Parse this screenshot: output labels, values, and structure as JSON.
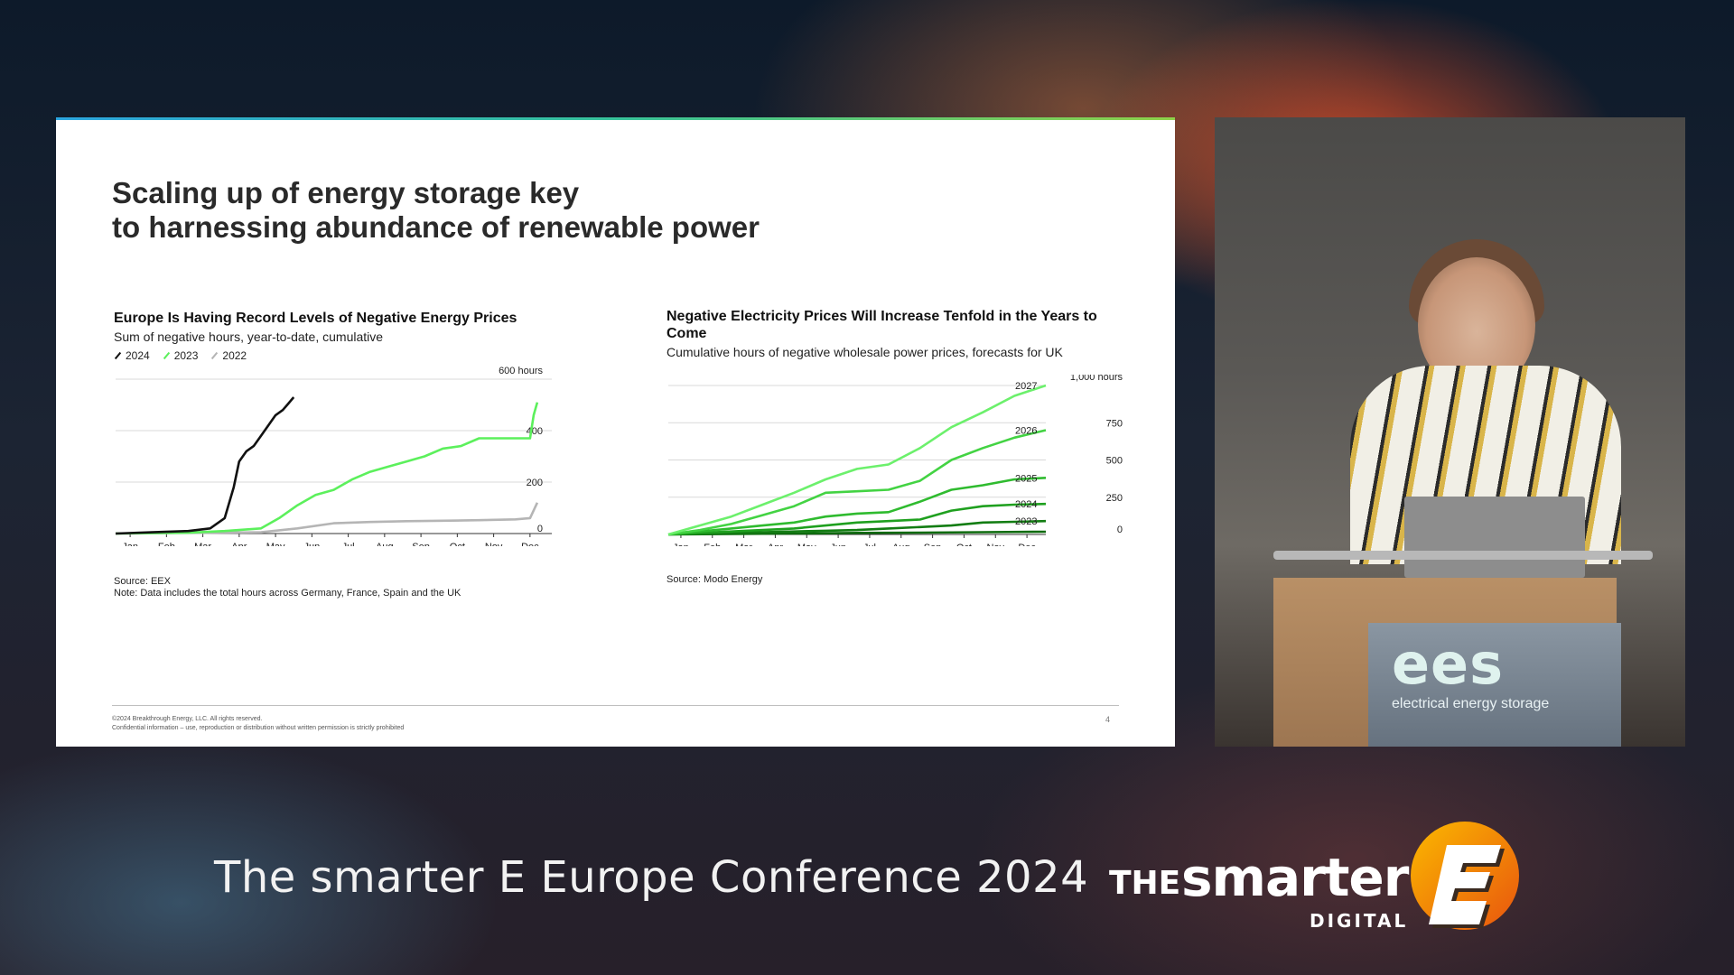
{
  "slide": {
    "title_line1": "Scaling up of energy storage key",
    "title_line2": "to harnessing abundance of renewable power",
    "footer_copyright": "©2024 Breakthrough Energy, LLC. All rights reserved.",
    "footer_confidential": "Confidential information – use, reproduction or distribution without written permission is strictly prohibited",
    "page_number": "4"
  },
  "chart_data": [
    {
      "type": "line",
      "title": "Europe Is Having Record Levels of Negative Energy Prices",
      "subtitle": "Sum of negative hours, year-to-date, cumulative",
      "unit_label": "600 hours",
      "categories": [
        "Jan",
        "Feb",
        "Mar",
        "Apr",
        "May",
        "Jun",
        "Jul",
        "Aug",
        "Sep",
        "Oct",
        "Nov",
        "Dec"
      ],
      "y_ticks": [
        0,
        200,
        400
      ],
      "ylim": [
        0,
        600
      ],
      "grid": true,
      "legend_position": "top-left",
      "series": [
        {
          "name": "2024",
          "color": "#111111",
          "x": [
            0,
            1,
            2,
            2.6,
            3.0,
            3.25,
            3.4,
            3.6,
            3.8,
            4.0,
            4.2,
            4.4,
            4.6,
            4.75,
            4.9
          ],
          "values": [
            0,
            5,
            10,
            20,
            60,
            180,
            280,
            320,
            340,
            380,
            420,
            460,
            480,
            505,
            530
          ]
        },
        {
          "name": "2023",
          "color": "#5cf05c",
          "x": [
            0,
            2,
            3,
            4,
            4.5,
            5,
            5.5,
            6,
            6.5,
            7,
            7.5,
            8,
            8.5,
            9,
            9.5,
            10,
            10.5,
            11,
            11.4,
            11.5,
            11.6
          ],
          "values": [
            0,
            3,
            10,
            20,
            60,
            110,
            150,
            170,
            210,
            240,
            260,
            280,
            300,
            330,
            340,
            370,
            370,
            370,
            370,
            460,
            510
          ]
        },
        {
          "name": "2022",
          "color": "#b5b5b5",
          "x": [
            0,
            4,
            5,
            6,
            7,
            8,
            9,
            10,
            11,
            11.4,
            11.6
          ],
          "values": [
            0,
            5,
            20,
            40,
            45,
            48,
            50,
            52,
            55,
            60,
            120
          ]
        }
      ],
      "source": "Source: EEX",
      "note": "Note: Data includes the total hours across Germany, France, Spain and the UK"
    },
    {
      "type": "line",
      "title": "Negative Electricity Prices Will Increase Tenfold in the Years to Come",
      "subtitle": "Cumulative hours of negative wholesale power prices, forecasts for UK",
      "unit_label": "1,000 hours",
      "categories": [
        "Jan",
        "Feb",
        "Mar",
        "Apr",
        "May",
        "Jun",
        "Jul",
        "Aug",
        "Sep",
        "Oct",
        "Nov",
        "Dec"
      ],
      "y_ticks": [
        0,
        250,
        500,
        750
      ],
      "ylim": [
        0,
        1000
      ],
      "grid": true,
      "series": [
        {
          "name": "2027",
          "color": "#6cf06c",
          "x": [
            0,
            1,
            2,
            3,
            4,
            5,
            6,
            7,
            8,
            9,
            10,
            11,
            12
          ],
          "values": [
            0,
            60,
            120,
            200,
            280,
            370,
            440,
            470,
            580,
            720,
            820,
            930,
            1000
          ]
        },
        {
          "name": "2026",
          "color": "#43d343",
          "x": [
            0,
            1,
            2,
            3,
            4,
            5,
            6,
            7,
            8,
            9,
            10,
            11,
            12
          ],
          "values": [
            0,
            30,
            70,
            130,
            190,
            280,
            290,
            300,
            360,
            500,
            580,
            650,
            700
          ]
        },
        {
          "name": "2025",
          "color": "#2fbb2f",
          "x": [
            0,
            1,
            2,
            3,
            4,
            5,
            6,
            7,
            8,
            9,
            10,
            11,
            12
          ],
          "values": [
            0,
            20,
            40,
            60,
            80,
            120,
            140,
            150,
            220,
            300,
            330,
            370,
            380
          ]
        },
        {
          "name": "2024",
          "color": "#1fa01f",
          "x": [
            0,
            1,
            2,
            3,
            4,
            5,
            6,
            7,
            8,
            9,
            10,
            11,
            12
          ],
          "values": [
            0,
            10,
            20,
            30,
            40,
            60,
            80,
            90,
            100,
            160,
            190,
            200,
            205
          ]
        },
        {
          "name": "2023",
          "color": "#137d13",
          "x": [
            0,
            1,
            2,
            3,
            4,
            5,
            6,
            7,
            8,
            9,
            10,
            11,
            12
          ],
          "values": [
            0,
            5,
            10,
            15,
            20,
            25,
            30,
            40,
            50,
            60,
            80,
            85,
            90
          ]
        },
        {
          "name": "",
          "color": "#0e6b0e",
          "x": [
            0,
            2,
            4,
            6,
            8,
            10,
            12
          ],
          "values": [
            0,
            3,
            6,
            10,
            12,
            15,
            18
          ]
        }
      ],
      "source": "Source: Modo Energy"
    }
  ],
  "speaker": {
    "podium_logo_mark": "ees",
    "podium_logo_text": "electrical energy storage"
  },
  "event": {
    "conference_title": "The smarter E Europe Conference 2024",
    "brand_the": "THE",
    "brand_smarter": "smarter",
    "brand_digital": "DIGITAL",
    "brand_accent": "#f39200"
  }
}
